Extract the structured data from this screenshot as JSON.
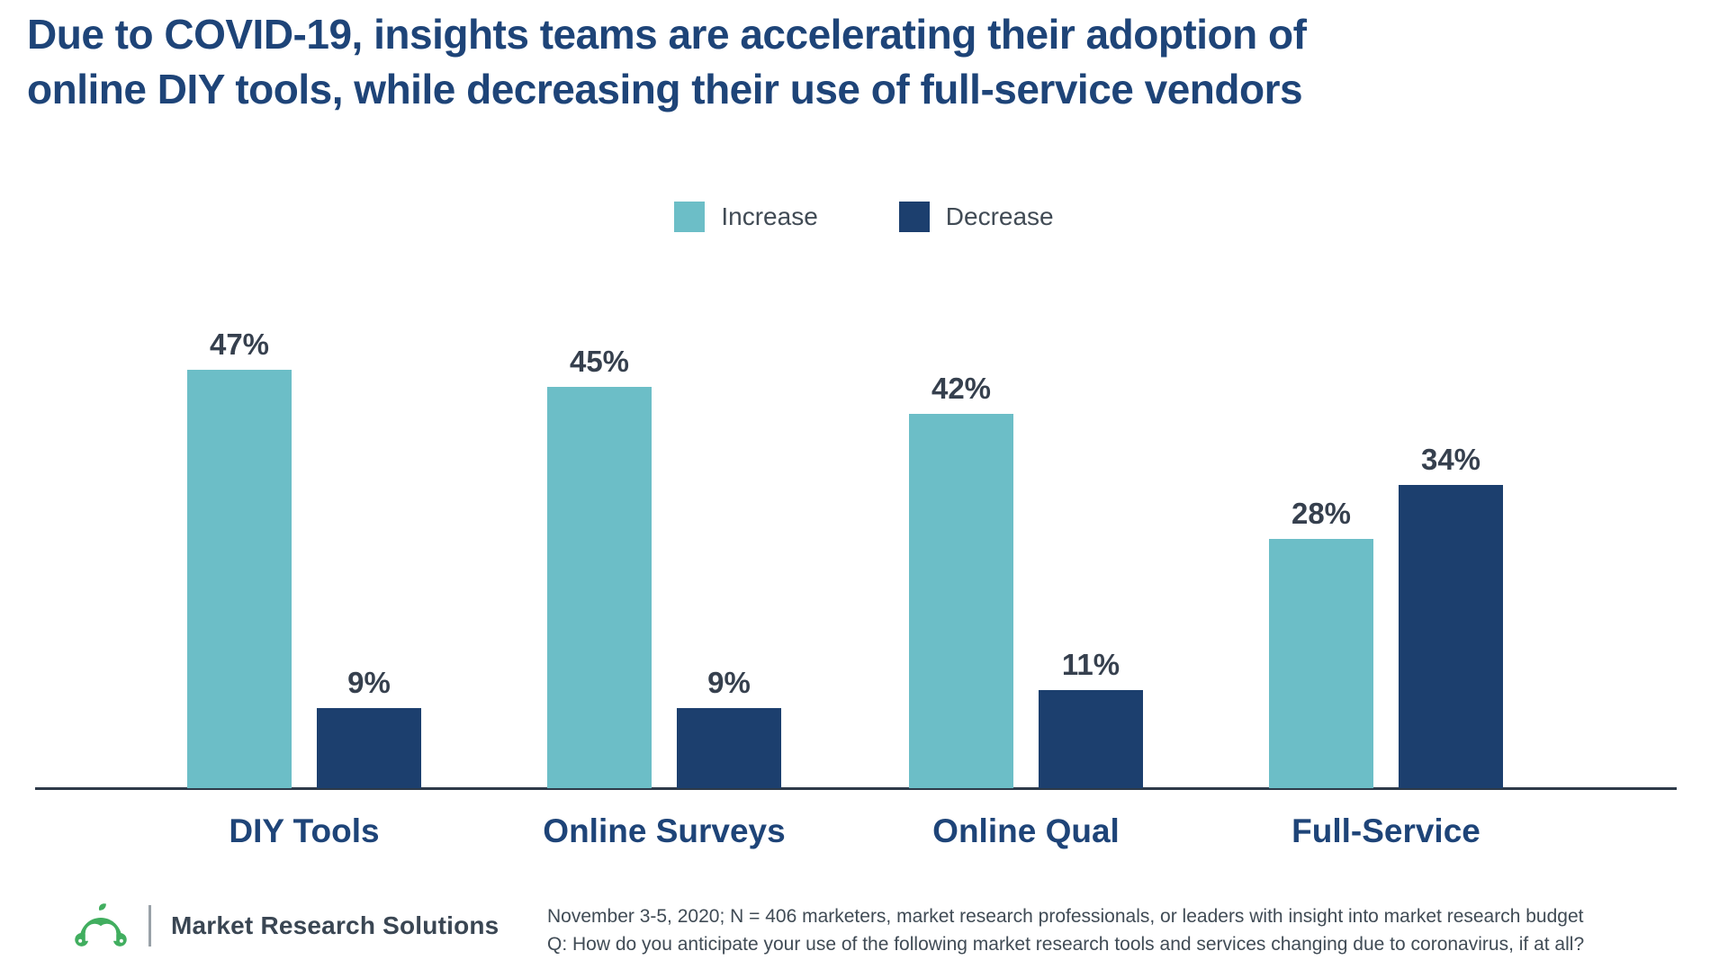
{
  "title": {
    "line1": "Due to COVID-19, insights teams are accelerating their adoption of",
    "line2": "online DIY tools, while decreasing their use of full-service vendors"
  },
  "legend": [
    {
      "label": "Increase",
      "color": "#6CBEC7"
    },
    {
      "label": "Decrease",
      "color": "#1C3F6E"
    }
  ],
  "chart_data": {
    "type": "bar",
    "categories": [
      "DIY Tools",
      "Online Surveys",
      "Online Qual",
      "Full-Service"
    ],
    "series": [
      {
        "name": "Increase",
        "color": "#6CBEC7",
        "values": [
          47,
          45,
          42,
          28
        ]
      },
      {
        "name": "Decrease",
        "color": "#1C3F6E",
        "values": [
          9,
          9,
          11,
          34
        ]
      }
    ],
    "data_labels": [
      "47%",
      "9%",
      "45%",
      "9%",
      "42%",
      "11%",
      "28%",
      "34%"
    ],
    "value_suffix": "%",
    "ylim": [
      0,
      50
    ],
    "grid": false,
    "y_axis_visible": false,
    "legend_position": "top-center"
  },
  "footer": {
    "logo": "surveymonkey-monkey-icon",
    "brand": "Market Research Solutions",
    "note_line1": "November 3-5, 2020; N = 406 marketers, market research professionals, or leaders with insight into market research budget",
    "note_line2": "Q: How do you anticipate your use of the following market research tools and services changing due to coronavirus, if at all?"
  },
  "colors": {
    "increase": "#6CBEC7",
    "decrease": "#1C3F6E",
    "title_text": "#1E4478",
    "category_text": "#1E4478",
    "value_text": "#36404E",
    "axis_line": "#2E3A49",
    "legend_text": "#414B55",
    "notes_text": "#404B55",
    "brand_text": "#3A4653",
    "logo_green": "#41AE5F",
    "divider": "#99A1A8"
  }
}
